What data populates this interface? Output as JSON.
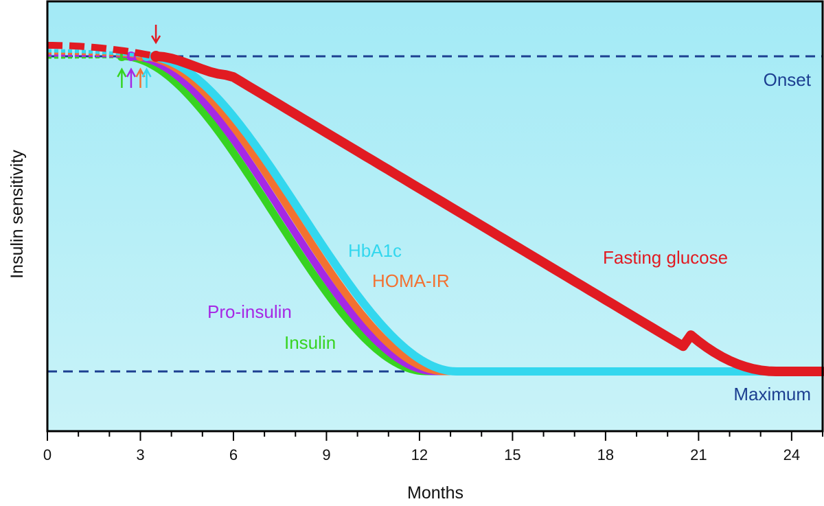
{
  "chart_data": {
    "type": "line",
    "xlabel": "Months",
    "ylabel": "Insulin sensitivity",
    "xlim": [
      0,
      25
    ],
    "xticks": [
      0,
      3,
      6,
      9,
      12,
      15,
      18,
      21,
      24
    ],
    "minor_tick_step": 1,
    "grid": false,
    "background": {
      "top": "#a3eaf6",
      "bottom": "#c9f3f8"
    },
    "reference_lines": [
      {
        "name": "Onset",
        "label": "Onset",
        "value": "onset",
        "color": "#1c3f91"
      },
      {
        "name": "Maximum",
        "label": "Maximum",
        "value": "maximum",
        "color": "#1c3f91"
      }
    ],
    "series": [
      {
        "name": "Insulin",
        "label": "Insulin",
        "color": "#37d321",
        "onset_month": 2.4,
        "end_month": 12.2,
        "arrow_month": 2.4
      },
      {
        "name": "Pro-insulin",
        "label": "Pro-insulin",
        "color": "#a628e4",
        "onset_month": 2.7,
        "end_month": 12.5,
        "arrow_month": 2.7
      },
      {
        "name": "HOMA-IR",
        "label": "HOMA-IR",
        "color": "#f37131",
        "onset_month": 3.0,
        "end_month": 12.8,
        "arrow_month": 3.0
      },
      {
        "name": "HbA1c",
        "label": "HbA1c",
        "color": "#33d7ee",
        "onset_month": 3.2,
        "end_month": 13.2,
        "arrow_month": 3.2
      },
      {
        "name": "Fasting glucose",
        "label": "Fasting glucose",
        "color": "#e11b22",
        "onset_month": 3.5,
        "end_month": 23.5,
        "arrow_month": 3.5
      }
    ]
  }
}
